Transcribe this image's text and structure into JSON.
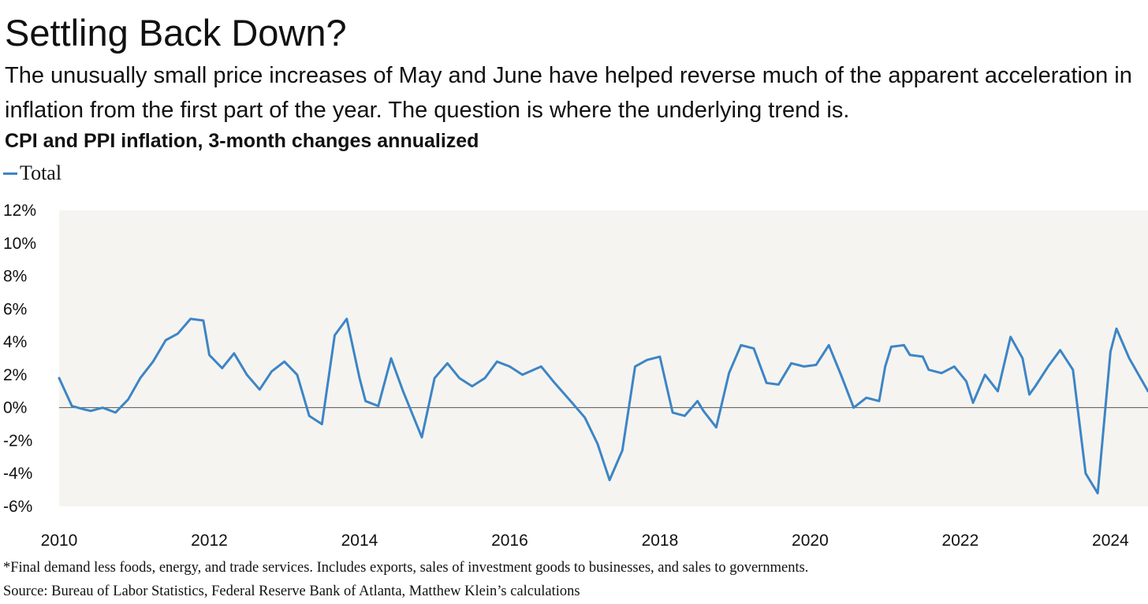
{
  "header": {
    "title": "Settling Back Down?",
    "subtitle": "The unusually small price increases of May and June have helped reverse much of the apparent acceleration in inflation from the first part of the year. The question is where the underlying trend is.",
    "chart_title": "CPI and PPI inflation, 3-month changes annualized"
  },
  "footer": {
    "note": "*Final demand less foods, energy, and trade services. Includes exports, sales of investment goods to businesses, and sales to governments.",
    "source": "Source: Bureau of Labor Statistics, Federal Reserve Bank of Atlanta, Matthew Klein’s calculations"
  },
  "chart_data": {
    "type": "line",
    "title": "CPI and PPI inflation, 3-month changes annualized",
    "xlabel": "",
    "ylabel": "",
    "xlim": [
      2010.0,
      2024.5
    ],
    "ylim": [
      -6,
      12
    ],
    "x_ticks": [
      2010,
      2012,
      2014,
      2016,
      2018,
      2020,
      2022,
      2024
    ],
    "x_tick_labels": [
      "2010",
      "2012",
      "2014",
      "2016",
      "2018",
      "2020",
      "2022",
      "2024"
    ],
    "y_ticks": [
      -6,
      -4,
      -2,
      0,
      2,
      4,
      6,
      8,
      10,
      12
    ],
    "y_tick_labels": [
      "-6%",
      "-4%",
      "-2%",
      "0%",
      "2%",
      "4%",
      "6%",
      "8%",
      "10%",
      "12%"
    ],
    "grid": false,
    "legend_position": "top",
    "plot_background": "#f5f4f0",
    "series": [
      {
        "name": "Total",
        "color": "#3d85c6",
        "style": "solid",
        "points": [
          [
            2010.0,
            1.8
          ],
          [
            2010.17,
            0.1
          ],
          [
            2010.33,
            -0.1
          ],
          [
            2010.42,
            -0.2
          ],
          [
            2010.58,
            0.0
          ],
          [
            2010.75,
            -0.3
          ],
          [
            2010.92,
            0.5
          ],
          [
            2011.08,
            1.8
          ],
          [
            2011.25,
            2.8
          ],
          [
            2011.42,
            4.1
          ],
          [
            2011.58,
            4.5
          ],
          [
            2011.75,
            5.4
          ],
          [
            2011.92,
            5.3
          ],
          [
            2012.0,
            3.2
          ],
          [
            2012.17,
            2.4
          ],
          [
            2012.33,
            3.3
          ],
          [
            2012.5,
            2.0
          ],
          [
            2012.67,
            1.1
          ],
          [
            2012.83,
            2.2
          ],
          [
            2013.0,
            2.8
          ],
          [
            2013.17,
            2.0
          ],
          [
            2013.33,
            -0.5
          ],
          [
            2013.5,
            -1.0
          ],
          [
            2013.67,
            4.4
          ],
          [
            2013.83,
            5.4
          ],
          [
            2014.0,
            1.8
          ],
          [
            2014.08,
            0.4
          ],
          [
            2014.25,
            0.1
          ],
          [
            2014.42,
            3.0
          ],
          [
            2014.58,
            1.0
          ],
          [
            2014.83,
            -1.8
          ],
          [
            2015.0,
            1.8
          ],
          [
            2015.17,
            2.7
          ],
          [
            2015.33,
            1.8
          ],
          [
            2015.5,
            1.3
          ],
          [
            2015.67,
            1.8
          ],
          [
            2015.83,
            2.8
          ],
          [
            2016.0,
            2.5
          ],
          [
            2016.17,
            2.0
          ],
          [
            2016.42,
            2.5
          ],
          [
            2016.58,
            1.6
          ],
          [
            2016.83,
            0.3
          ],
          [
            2017.0,
            -0.6
          ],
          [
            2017.17,
            -2.2
          ],
          [
            2017.33,
            -4.4
          ],
          [
            2017.5,
            -2.6
          ],
          [
            2017.67,
            2.5
          ],
          [
            2017.83,
            2.9
          ],
          [
            2018.0,
            3.1
          ],
          [
            2018.17,
            -0.3
          ],
          [
            2018.33,
            -0.5
          ],
          [
            2018.5,
            0.4
          ],
          [
            2018.58,
            -0.2
          ],
          [
            2018.75,
            -1.2
          ],
          [
            2018.92,
            2.1
          ],
          [
            2019.08,
            3.8
          ],
          [
            2019.25,
            3.6
          ],
          [
            2019.42,
            1.5
          ],
          [
            2019.58,
            1.4
          ],
          [
            2019.75,
            2.7
          ],
          [
            2019.92,
            2.5
          ],
          [
            2020.08,
            2.6
          ],
          [
            2020.25,
            3.8
          ],
          [
            2020.42,
            1.9
          ],
          [
            2020.58,
            0.0
          ],
          [
            2020.75,
            0.6
          ],
          [
            2020.92,
            0.4
          ],
          [
            2021.0,
            2.5
          ],
          [
            2021.08,
            3.7
          ],
          [
            2021.25,
            3.8
          ],
          [
            2021.33,
            3.2
          ],
          [
            2021.5,
            3.1
          ],
          [
            2021.58,
            2.3
          ],
          [
            2021.75,
            2.1
          ],
          [
            2021.92,
            2.5
          ],
          [
            2022.08,
            1.6
          ],
          [
            2022.17,
            0.3
          ],
          [
            2022.33,
            2.0
          ],
          [
            2022.5,
            1.0
          ],
          [
            2022.67,
            4.3
          ],
          [
            2022.83,
            3.0
          ],
          [
            2022.92,
            0.8
          ],
          [
            2023.0,
            1.3
          ],
          [
            2023.17,
            2.5
          ],
          [
            2023.33,
            3.5
          ],
          [
            2023.5,
            2.3
          ],
          [
            2023.67,
            -4.0
          ],
          [
            2023.83,
            -5.2
          ],
          [
            2024.0,
            3.4
          ],
          [
            2024.08,
            4.8
          ],
          [
            2024.25,
            3.0
          ],
          [
            2024.5,
            1.0
          ]
        ]
      }
    ]
  }
}
